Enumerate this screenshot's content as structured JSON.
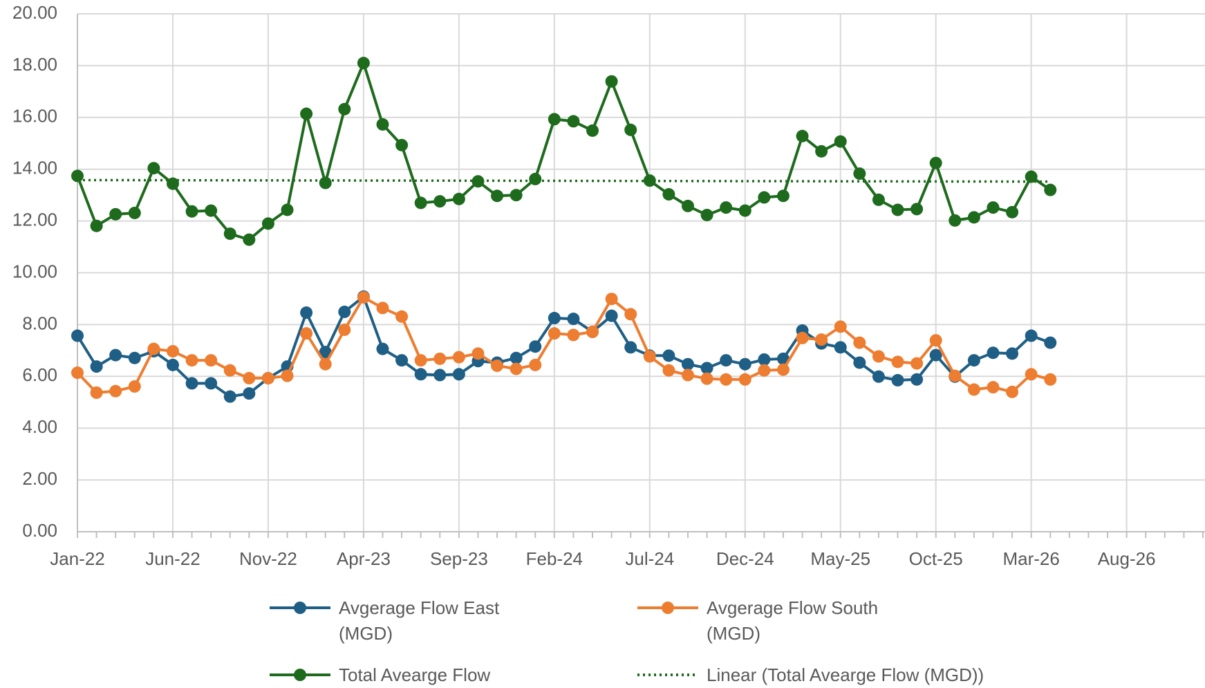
{
  "chart_data": {
    "type": "line",
    "categories": [
      "Jan-22",
      null,
      null,
      null,
      null,
      "Jun-22",
      null,
      null,
      null,
      null,
      "Nov-22",
      null,
      null,
      null,
      null,
      "Apr-23",
      null,
      null,
      null,
      null,
      "Sep-23",
      null,
      null,
      null,
      null,
      "Feb-24",
      null,
      null,
      null,
      null,
      "Jul-24",
      null,
      null,
      null,
      null,
      "Dec-24",
      null,
      null,
      null,
      null,
      "May-25",
      null,
      null,
      null,
      null,
      "Oct-25",
      null,
      null,
      null,
      null,
      "Mar-26",
      null,
      null,
      null,
      null,
      "Aug-26",
      null,
      null,
      null,
      null
    ],
    "series": [
      {
        "name": "Avgerage Flow East (MGD)",
        "color": "#1f5f85",
        "values": [
          7.57,
          6.38,
          6.82,
          6.71,
          6.97,
          6.44,
          5.73,
          5.73,
          5.22,
          5.34,
          5.93,
          6.38,
          8.46,
          6.94,
          8.49,
          9.08,
          7.06,
          6.62,
          6.08,
          6.05,
          6.08,
          6.59,
          6.53,
          6.71,
          7.15,
          8.25,
          8.22,
          7.72,
          8.34,
          7.12,
          6.8,
          6.8,
          6.47,
          6.32,
          6.62,
          6.47,
          6.65,
          6.68,
          7.77,
          7.27,
          7.12,
          6.53,
          5.99,
          5.85,
          5.88,
          6.82,
          5.99,
          6.62,
          6.91,
          6.88,
          7.57,
          7.3,
          null,
          null,
          null,
          null,
          null,
          null,
          null,
          null
        ]
      },
      {
        "name": "Avgerage Flow South (MGD)",
        "color": "#ed7d31",
        "values": [
          6.14,
          5.37,
          5.43,
          5.61,
          7.06,
          6.97,
          6.62,
          6.62,
          6.23,
          5.93,
          5.93,
          6.02,
          7.66,
          6.47,
          7.8,
          9.05,
          8.64,
          8.31,
          6.62,
          6.68,
          6.74,
          6.88,
          6.41,
          6.29,
          6.44,
          7.66,
          7.6,
          7.72,
          8.99,
          8.4,
          6.77,
          6.23,
          6.05,
          5.91,
          5.88,
          5.88,
          6.23,
          6.26,
          7.48,
          7.42,
          7.92,
          7.3,
          6.77,
          6.56,
          6.5,
          7.39,
          6.02,
          5.49,
          5.58,
          5.4,
          6.08,
          5.88,
          null,
          null,
          null,
          null,
          null,
          null,
          null,
          null
        ]
      },
      {
        "name": "Total Avearge Flow (MGD)",
        "color": "#1e6b1e",
        "values": [
          13.74,
          11.81,
          12.26,
          12.31,
          14.04,
          13.44,
          12.37,
          12.4,
          11.51,
          11.28,
          11.9,
          12.43,
          16.14,
          13.47,
          16.32,
          18.1,
          15.73,
          14.93,
          12.7,
          12.76,
          12.85,
          13.53,
          12.97,
          13.0,
          13.62,
          15.93,
          15.85,
          15.49,
          17.39,
          15.52,
          13.56,
          13.03,
          12.58,
          12.23,
          12.52,
          12.4,
          12.91,
          12.97,
          15.28,
          14.69,
          15.07,
          13.83,
          12.82,
          12.43,
          12.46,
          14.24,
          12.02,
          12.14,
          12.52,
          12.34,
          13.71,
          13.2,
          null,
          null,
          null,
          null,
          null,
          null,
          null,
          null
        ]
      }
    ],
    "trendline": {
      "name": "Linear (Total Avearge Flow (MGD))",
      "color": "#1e6b1e",
      "start": 13.58,
      "end": 13.52
    },
    "ylim": [
      0,
      20
    ],
    "yticks": [
      {
        "value": 0,
        "label": "0.00"
      },
      {
        "value": 2,
        "label": "2.00"
      },
      {
        "value": 4,
        "label": "4.00"
      },
      {
        "value": 6,
        "label": "6.00"
      },
      {
        "value": 8,
        "label": "8.00"
      },
      {
        "value": 10,
        "label": "10.00"
      },
      {
        "value": 12,
        "label": "12.00"
      },
      {
        "value": 14,
        "label": "14.00"
      },
      {
        "value": 16,
        "label": "16.00"
      },
      {
        "value": 18,
        "label": "18.00"
      },
      {
        "value": 20,
        "label": "20.00"
      }
    ],
    "grid": true
  }
}
